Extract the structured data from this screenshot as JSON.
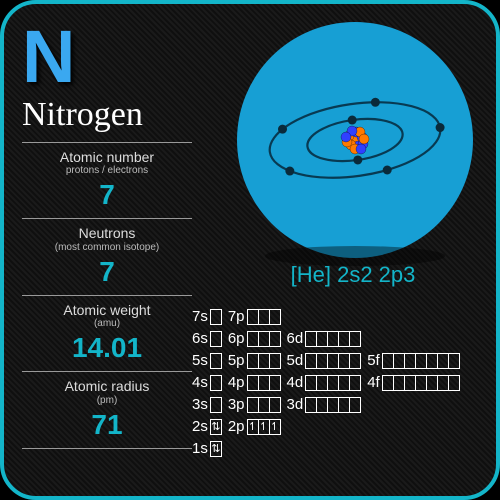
{
  "element": {
    "symbol": "N",
    "name": "Nitrogen",
    "symbol_color": "#3aa8f0",
    "accent_color": "#13b5c9",
    "border_color": "#13b5c9"
  },
  "properties": [
    {
      "label": "Atomic number",
      "sub": "protons / electrons",
      "value": "7"
    },
    {
      "label": "Neutrons",
      "sub": "(most common isotope)",
      "value": "7"
    },
    {
      "label": "Atomic weight",
      "sub": "(amu)",
      "value": "14.01"
    },
    {
      "label": "Atomic radius",
      "sub": "(pm)",
      "value": "71"
    }
  ],
  "electron_config": "[He] 2s2 2p3",
  "atom": {
    "bg_color": "#179fd4",
    "shells": [
      2,
      5
    ],
    "nucleus_colors": [
      "#ff7a00",
      "#3040ff"
    ]
  },
  "orbital_rows": [
    {
      "parts": [
        {
          "l": "7s",
          "n": 1
        },
        {
          "l": "7p",
          "n": 3
        }
      ]
    },
    {
      "parts": [
        {
          "l": "6s",
          "n": 1
        },
        {
          "l": "6p",
          "n": 3
        },
        {
          "l": "6d",
          "n": 5
        }
      ]
    },
    {
      "parts": [
        {
          "l": "5s",
          "n": 1
        },
        {
          "l": "5p",
          "n": 3
        },
        {
          "l": "5d",
          "n": 5
        },
        {
          "l": "5f",
          "n": 7
        }
      ]
    },
    {
      "parts": [
        {
          "l": "4s",
          "n": 1
        },
        {
          "l": "4p",
          "n": 3
        },
        {
          "l": "4d",
          "n": 5
        },
        {
          "l": "4f",
          "n": 7
        }
      ]
    },
    {
      "parts": [
        {
          "l": "3s",
          "n": 1
        },
        {
          "l": "3p",
          "n": 3
        },
        {
          "l": "3d",
          "n": 5
        }
      ]
    },
    {
      "parts": [
        {
          "l": "2s",
          "n": 1,
          "fill": [
            "updn"
          ]
        },
        {
          "l": "2p",
          "n": 3,
          "fill": [
            "up",
            "up",
            "up"
          ]
        }
      ]
    },
    {
      "parts": [
        {
          "l": "1s",
          "n": 1,
          "fill": [
            "updn"
          ]
        }
      ]
    }
  ]
}
